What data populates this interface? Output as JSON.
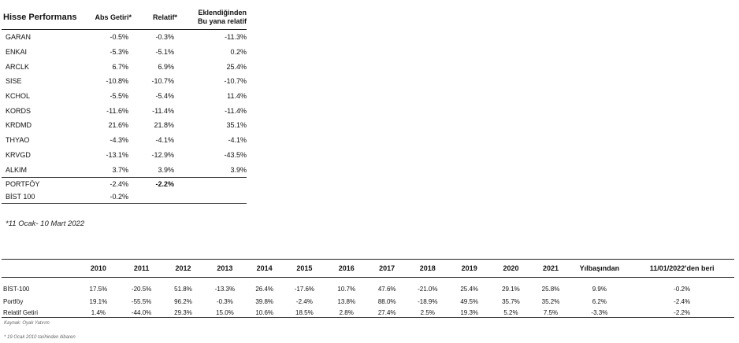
{
  "performance": {
    "headers": {
      "stock": "Hisse Performans",
      "abs": "Abs Getiri*",
      "rel": "Relatif*",
      "since_line1": "Eklendiğinden",
      "since_line2": "Bu yana relatif"
    },
    "rows": [
      {
        "name": "GARAN",
        "abs": "-0.5%",
        "rel": "-0.3%",
        "since": "-11.3%"
      },
      {
        "name": "ENKAI",
        "abs": "-5.3%",
        "rel": "-5.1%",
        "since": "0.2%"
      },
      {
        "name": "ARCLK",
        "abs": "6.7%",
        "rel": "6.9%",
        "since": "25.4%"
      },
      {
        "name": "SISE",
        "abs": "-10.8%",
        "rel": "-10.7%",
        "since": "-10.7%"
      },
      {
        "name": "KCHOL",
        "abs": "-5.5%",
        "rel": "-5.4%",
        "since": "11.4%"
      },
      {
        "name": "KORDS",
        "abs": "-11.6%",
        "rel": "-11.4%",
        "since": "-11.4%"
      },
      {
        "name": "KRDMD",
        "abs": "21.6%",
        "rel": "21.8%",
        "since": "35.1%"
      },
      {
        "name": "THYAO",
        "abs": "-4.3%",
        "rel": "-4.1%",
        "since": "-4.1%"
      },
      {
        "name": "KRVGD",
        "abs": "-13.1%",
        "rel": "-12.9%",
        "since": "-43.5%"
      },
      {
        "name": "ALKIM",
        "abs": "3.7%",
        "rel": "3.9%",
        "since": "3.9%"
      }
    ],
    "portfolio": {
      "name": "PORTFÖY",
      "abs": "-2.4%",
      "rel": "-2.2%"
    },
    "index": {
      "name": "BİST 100",
      "abs": "-0.2%"
    },
    "footnote": "*11 Ocak- 10 Mart 2022"
  },
  "annual": {
    "headers": [
      "",
      "2010",
      "2011",
      "2012",
      "2013",
      "2014",
      "2015",
      "2016",
      "2017",
      "2018",
      "2019",
      "2020",
      "2021",
      "Yılbaşından",
      "11/01/2022'den beri"
    ],
    "rows": [
      {
        "name": "BİST-100",
        "values": [
          "17.5%",
          "-20.5%",
          "51.8%",
          "-13.3%",
          "26.4%",
          "-17.6%",
          "10.7%",
          "47.6%",
          "-21.0%",
          "25.4%",
          "29.1%",
          "25.8%",
          "9.9%",
          "-0.2%"
        ]
      },
      {
        "name": "Portföy",
        "values": [
          "19.1%",
          "-55.5%",
          "96.2%",
          "-0.3%",
          "39.8%",
          "-2.4%",
          "13.8%",
          "88.0%",
          "-18.9%",
          "49.5%",
          "35.7%",
          "35.2%",
          "6.2%",
          "-2.4%"
        ]
      },
      {
        "name": "Relatif Getiri",
        "values": [
          "1.4%",
          "-44.0%",
          "29.3%",
          "15.0%",
          "10.6%",
          "18.5%",
          "2.8%",
          "27.4%",
          "2.5%",
          "19.3%",
          "5.2%",
          "7.5%",
          "-3.3%",
          "-2.2%"
        ]
      }
    ],
    "source": "Kaynak: Oyak Yatırım",
    "footnote": "* 19 Ocak 2010 tarihinden itibaren"
  }
}
